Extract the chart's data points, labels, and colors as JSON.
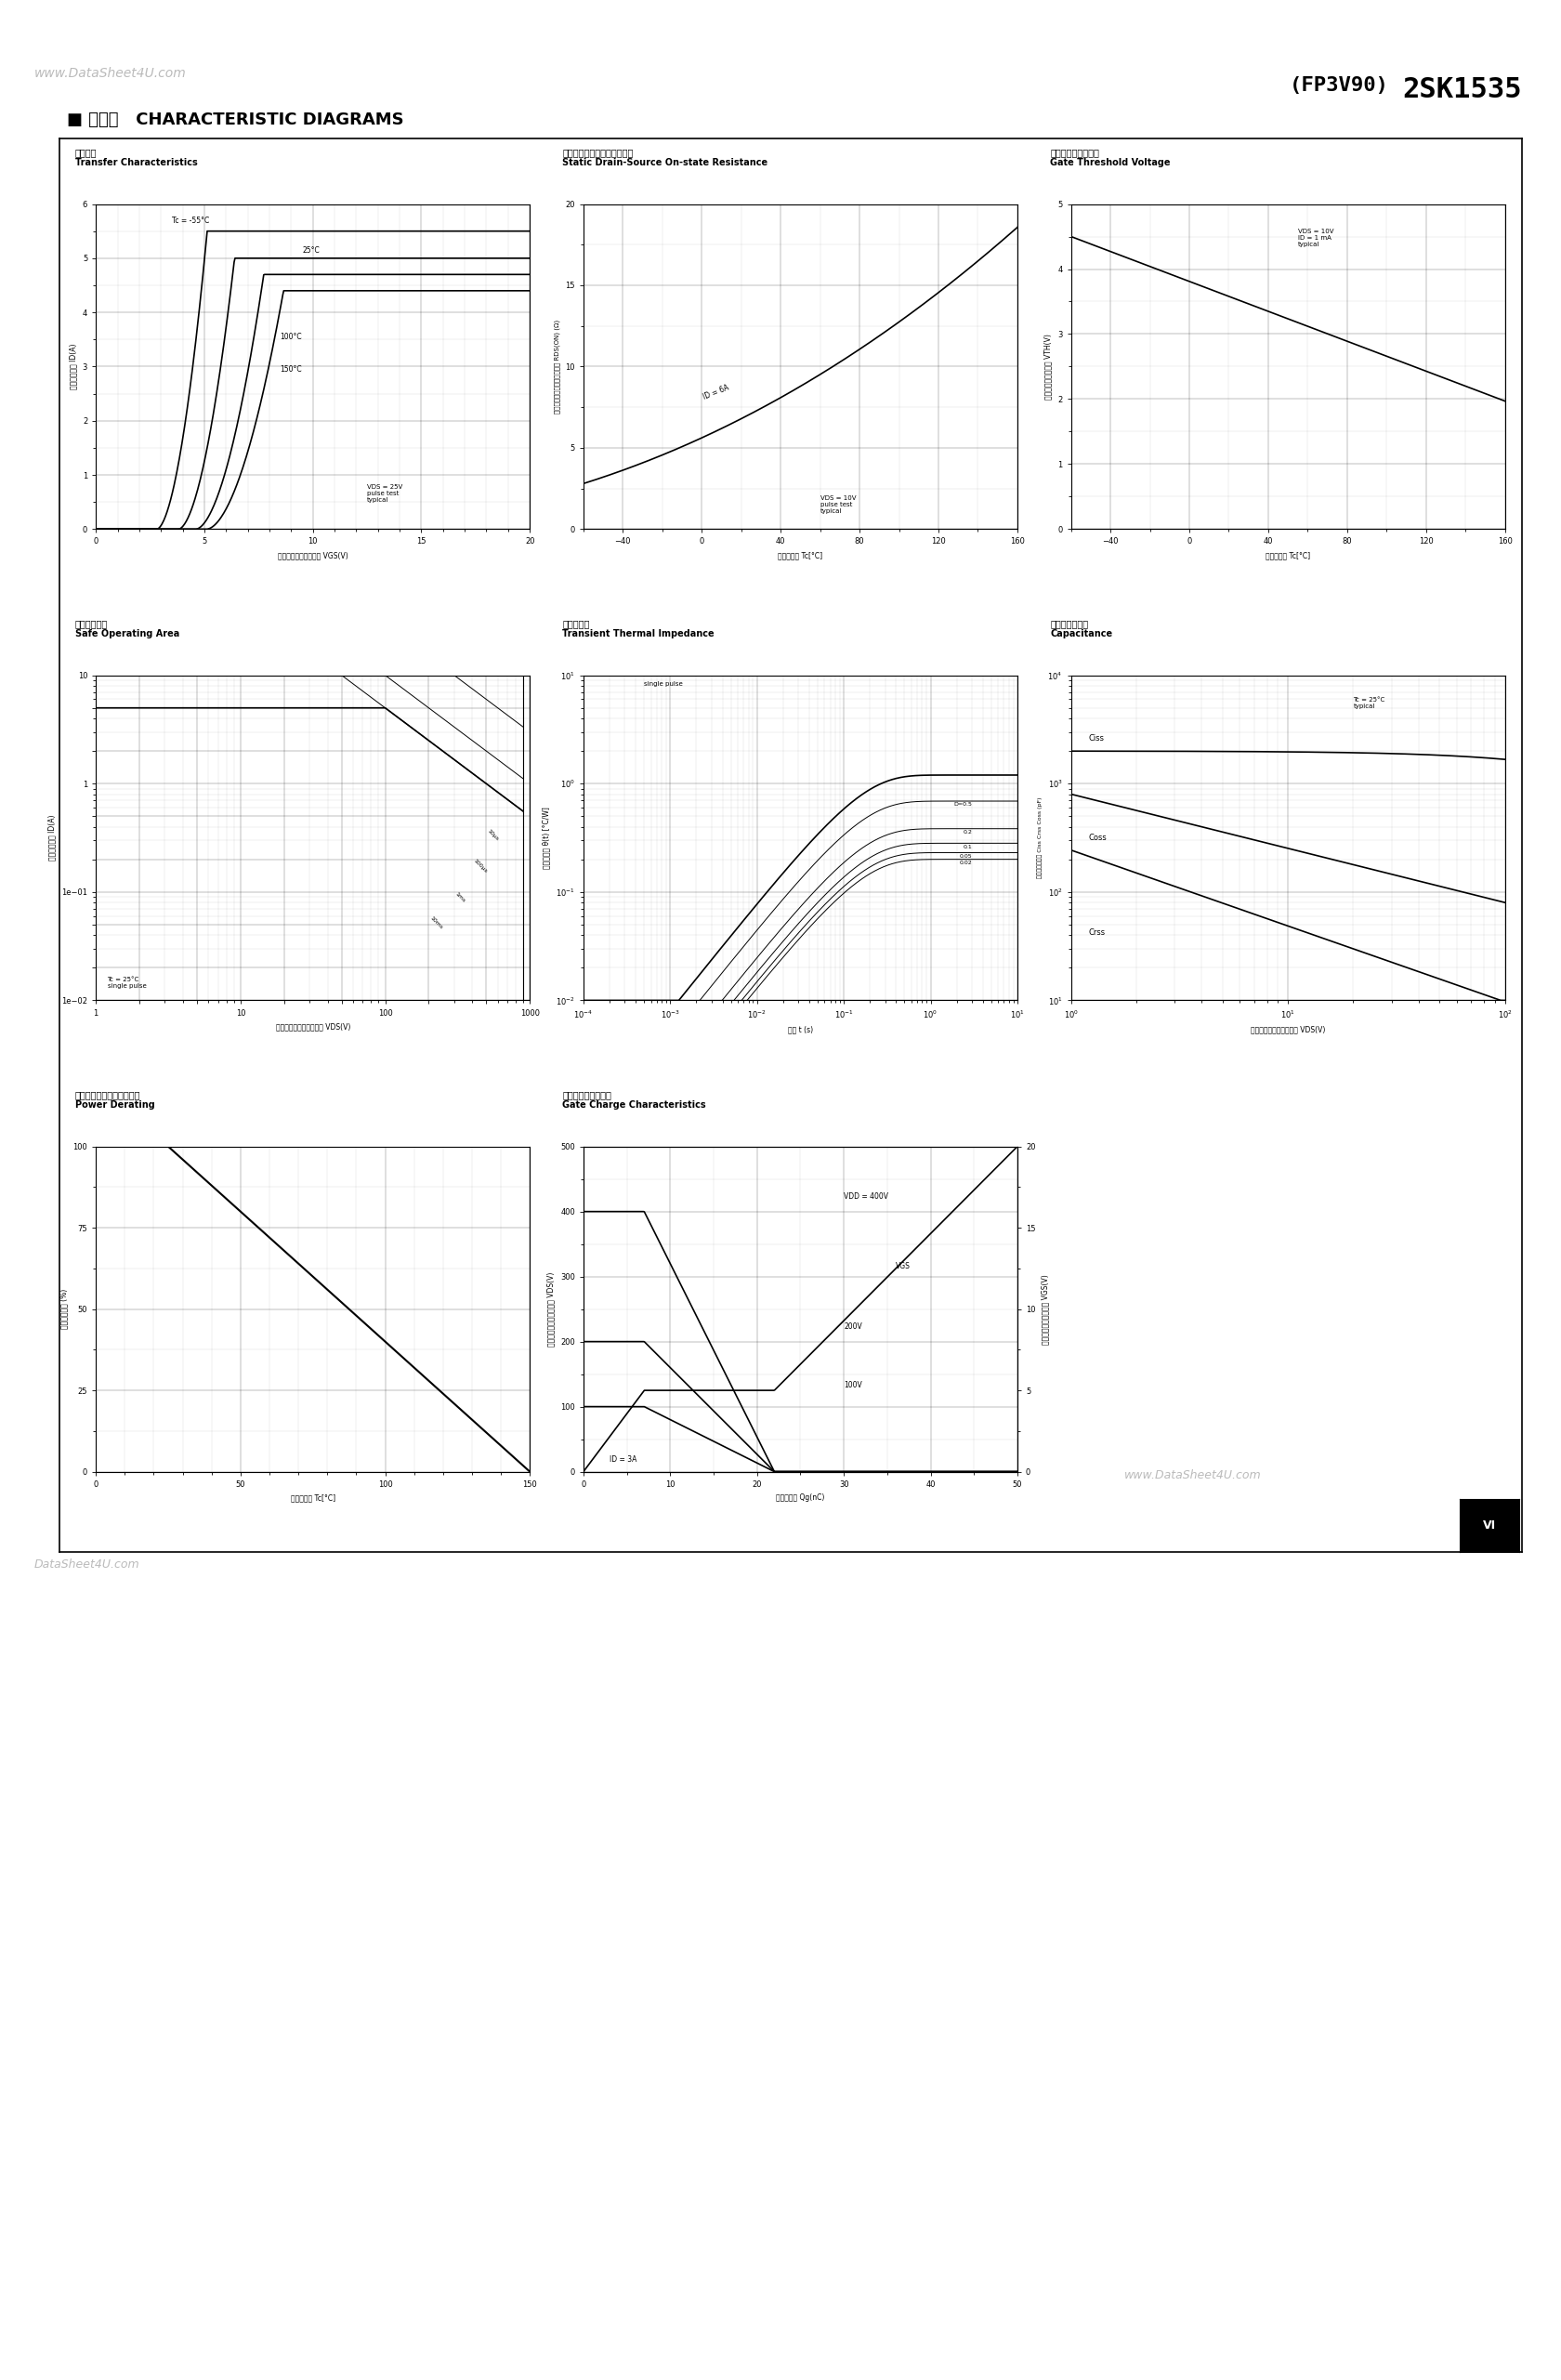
{
  "page_title": "2SK1535",
  "page_title2": "(FP3V90)",
  "section_title": "■ 特性図   CHARACTERISTIC DIAGRAMS",
  "watermark_top": "www.DataSheet4U.com",
  "watermark_bottom": "DataSheet4U.com",
  "watermark_right": "www.DataSheet4U.com",
  "bg_color": "#ffffff",
  "plots": {
    "transfer": {
      "title_jp": "伝達特性",
      "title_en": "Transfer Characteristics",
      "xlabel": "ゲート・ソース間電圧 VGS(V)",
      "ylabel": "ドレイン電流 ID(A)",
      "xlim": [
        0,
        20
      ],
      "ylim": [
        0,
        6
      ],
      "xticks": [
        0,
        5,
        10,
        15,
        20
      ],
      "yticks": [
        0,
        1,
        2,
        3,
        4,
        5,
        6
      ]
    },
    "rdson": {
      "title_jp": "ドレイン・ソース間オン抗抗",
      "title_en": "Static Drain-Source On-state Resistance",
      "xlabel": "ケース温度 Tc[°C]",
      "ylabel": "ドレイン・ソース間オン抗抗 RDS(ON) (Ω)",
      "xlim": [
        -60,
        160
      ],
      "ylim": [
        0,
        20
      ],
      "xticks": [
        -40,
        0,
        40,
        80,
        120,
        160
      ],
      "yticks": [
        0,
        5,
        10,
        15,
        20
      ]
    },
    "vth": {
      "title_jp": "ゲートしきい値電圧",
      "title_en": "Gate Threshold Voltage",
      "xlabel": "ケース温度 Tc[°C]",
      "ylabel": "ゲートしきい値電圧 VTH(V)",
      "xlim": [
        -60,
        160
      ],
      "ylim": [
        0,
        5
      ],
      "xticks": [
        -40,
        0,
        40,
        80,
        120,
        160
      ],
      "yticks": [
        0,
        1,
        2,
        3,
        4,
        5
      ]
    },
    "soa": {
      "title_jp": "安全動作領域",
      "title_en": "Safe Operating Area",
      "xlabel": "ドレイン・ソース間電圧 VDS(V)",
      "ylabel": "ドレイン電流 ID(A)"
    },
    "zthjc": {
      "title_jp": "過渡熱抗抗",
      "title_en": "Transient Thermal Impedance",
      "xlabel": "時間 t (s)",
      "ylabel": "過渡熱抗抗 θ(t) [°C/W]"
    },
    "cap": {
      "title_jp": "キャパシタンス",
      "title_en": "Capacitance",
      "xlabel": "ドレイン・ソース間電圧 VDS(V)",
      "ylabel": "キャパシタンス Ciss Crss Coss (pF)"
    },
    "derating": {
      "title_jp": "全損失減少率ーケース温度",
      "title_en": "Power Derating",
      "xlabel": "ケース温度 Tc[°C]",
      "ylabel": "全損失減少率 (%)",
      "xlim": [
        0,
        150
      ],
      "ylim": [
        0,
        100
      ],
      "xticks": [
        0,
        50,
        100,
        150
      ],
      "yticks": [
        0,
        25,
        50,
        75,
        100
      ]
    },
    "qg": {
      "title_jp": "ゲートチャージ特性",
      "title_en": "Gate Charge Characteristics",
      "xlabel": "ゲート電荷 Qg(nC)",
      "ylabel_l": "ドレイン・ソース間電圧 VDS(V)",
      "ylabel_r": "ゲート・ソース間電圧 VGS(V)",
      "xlim": [
        0,
        50
      ],
      "ylim_l": [
        0,
        500
      ],
      "ylim_r": [
        0,
        20
      ]
    }
  }
}
